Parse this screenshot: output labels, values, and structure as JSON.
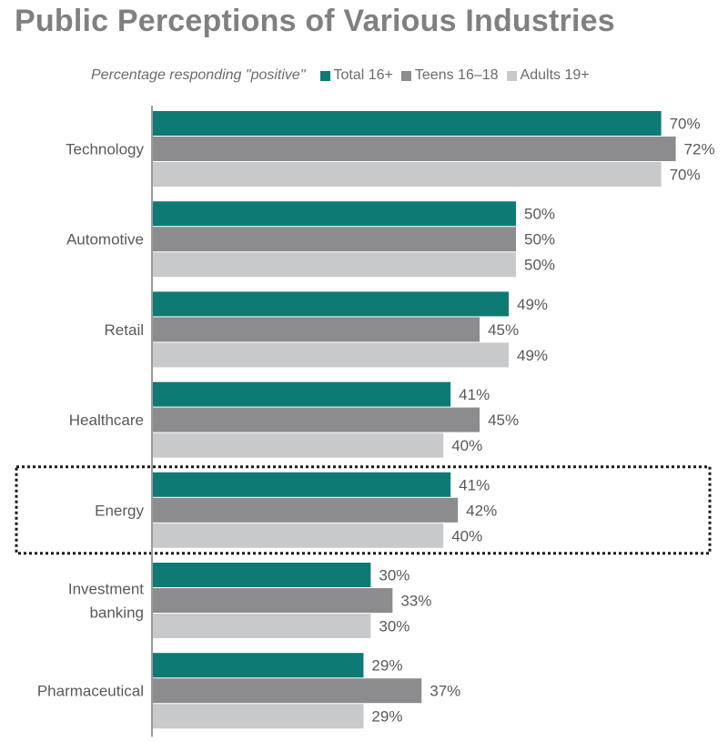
{
  "chart_data": {
    "type": "bar",
    "orientation": "horizontal",
    "title": "Public Perceptions of Various Industries",
    "subtitle": "Percentage responding \"positive\"",
    "xlabel": "",
    "ylabel": "",
    "xlim": [
      0,
      100
    ],
    "grid": false,
    "legend_position": "top",
    "categories": [
      [
        "Technology"
      ],
      [
        "Automotive"
      ],
      [
        "Retail"
      ],
      [
        "Healthcare"
      ],
      [
        "Energy"
      ],
      [
        "Investment",
        "banking"
      ],
      [
        "Pharmaceutical"
      ]
    ],
    "series": [
      {
        "name": "Total 16+",
        "color": "#0d7b73",
        "values": [
          70,
          50,
          49,
          41,
          41,
          30,
          29
        ]
      },
      {
        "name": "Teens 16–18",
        "color": "#8c8c8e",
        "values": [
          72,
          50,
          45,
          45,
          42,
          33,
          37
        ]
      },
      {
        "name": "Adults 19+",
        "color": "#c8c9cb",
        "values": [
          70,
          50,
          49,
          40,
          40,
          30,
          29
        ]
      }
    ],
    "value_suffix": "%",
    "highlighted_category": "Energy"
  }
}
